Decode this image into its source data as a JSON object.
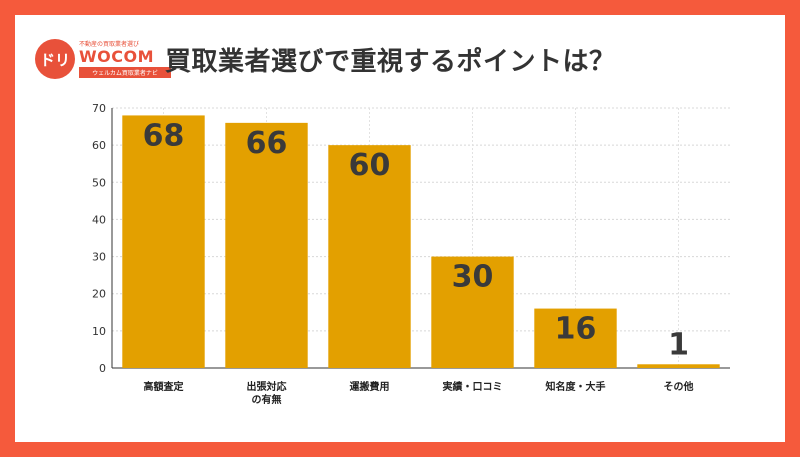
{
  "logo": {
    "mark": "ドリ",
    "tagline": "不動産の買取業者選び",
    "wordmark": "WOCOM",
    "ribbon": "ウェルカム買取業者ナビ"
  },
  "title": "買取業者選びで重視するポイントは？",
  "colors": {
    "background_frame": "#F55A3C",
    "bar": "#E3A000",
    "label_text": "#3A3A3A",
    "axis": "#333333"
  },
  "chart_data": {
    "type": "bar",
    "title": "買取業者選びで重視するポイントは？",
    "categories": [
      "高額査定",
      "出張対応\nの有無",
      "運搬費用",
      "実績・口コミ",
      "知名度・大手",
      "その他"
    ],
    "values": [
      68,
      66,
      60,
      30,
      16,
      1
    ],
    "xlabel": "",
    "ylabel": "",
    "ylim": [
      0,
      70
    ],
    "yticks": [
      0,
      10,
      20,
      30,
      40,
      50,
      60,
      70
    ],
    "grid": true,
    "data_labels": true
  }
}
